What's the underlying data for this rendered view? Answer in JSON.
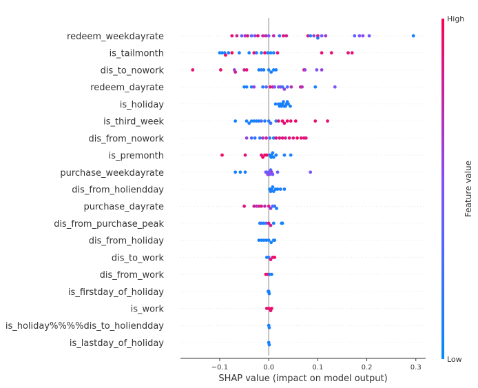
{
  "chart_data": {
    "type": "scatter",
    "title": "",
    "xlabel": "SHAP value (impact on model output)",
    "ylabel": "",
    "xlim": [
      -0.18,
      0.32
    ],
    "xticks": [
      -0.1,
      0.0,
      0.1,
      0.2,
      0.3
    ],
    "xtick_labels": [
      "−0.1",
      "0.0",
      "0.1",
      "0.2",
      "0.3"
    ],
    "grid": false,
    "features": [
      "redeem_weekdayrate",
      "is_tailmonth",
      "dis_to_nowork",
      "redeem_dayrate",
      "is_holiday",
      "is_third_week",
      "dis_from_nowork",
      "is_premonth",
      "purchase_weekdayrate",
      "dis_from_holiendday",
      "purchase_dayrate",
      "dis_from_purchase_peak",
      "dis_from_holiday",
      "dis_to_work",
      "dis_from_work",
      "is_firstday_of_holiday",
      "is_work",
      "is_holiday%%%%dis_to_holiendday",
      "is_lastday_of_holiday"
    ],
    "colorbar": {
      "high_label": "High",
      "low_label": "Low",
      "title": "Feature value",
      "high_color": "#ff0052",
      "low_color": "#008bfb"
    },
    "series": [
      {
        "feature": "redeem_weekdayrate",
        "points": [
          [
            -0.075,
            0.9
          ],
          [
            -0.065,
            0.8
          ],
          [
            -0.055,
            0.4
          ],
          [
            -0.048,
            0.7
          ],
          [
            -0.043,
            0.85
          ],
          [
            -0.035,
            0.3
          ],
          [
            -0.028,
            0.6
          ],
          [
            -0.022,
            0.9
          ],
          [
            -0.012,
            0.75
          ],
          [
            -0.006,
            0.8
          ],
          [
            0.0,
            0.5
          ],
          [
            0.01,
            0.75
          ],
          [
            0.022,
            0.2
          ],
          [
            0.03,
            0.9
          ],
          [
            0.036,
            0.8
          ],
          [
            0.08,
            0.88
          ],
          [
            0.085,
            0.1
          ],
          [
            0.092,
            0.6
          ],
          [
            0.1,
            0.85
          ],
          [
            0.1,
            0.15
          ],
          [
            0.108,
            0.45
          ],
          [
            0.116,
            0.65
          ],
          [
            0.175,
            0.4
          ],
          [
            0.185,
            0.5
          ],
          [
            0.192,
            0.55
          ],
          [
            0.205,
            0.45
          ],
          [
            0.295,
            0.1
          ]
        ]
      },
      {
        "feature": "is_tailmonth",
        "points": [
          [
            -0.1,
            0.1
          ],
          [
            -0.095,
            0.1
          ],
          [
            -0.09,
            0.1
          ],
          [
            -0.088,
            0.95
          ],
          [
            -0.082,
            0.1
          ],
          [
            -0.075,
            0.95
          ],
          [
            -0.06,
            0.1
          ],
          [
            -0.04,
            0.1
          ],
          [
            -0.03,
            0.95
          ],
          [
            -0.025,
            0.1
          ],
          [
            -0.015,
            0.1
          ],
          [
            -0.008,
            0.95
          ],
          [
            -0.002,
            0.1
          ],
          [
            0.004,
            0.1
          ],
          [
            0.01,
            0.1
          ],
          [
            0.018,
            0.9
          ],
          [
            0.108,
            0.9
          ],
          [
            0.128,
            0.9
          ],
          [
            0.162,
            0.9
          ],
          [
            0.17,
            0.9
          ]
        ]
      },
      {
        "feature": "dis_to_nowork",
        "points": [
          [
            -0.155,
            0.9
          ],
          [
            -0.098,
            0.9
          ],
          [
            -0.07,
            0.6
          ],
          [
            -0.068,
            0.8
          ],
          [
            -0.05,
            0.8
          ],
          [
            -0.045,
            0.9
          ],
          [
            -0.02,
            0.1
          ],
          [
            -0.015,
            0.2
          ],
          [
            -0.01,
            0.1
          ],
          [
            0.0,
            0.1
          ],
          [
            0.005,
            0.1
          ],
          [
            0.01,
            0.1
          ],
          [
            0.015,
            0.1
          ],
          [
            0.072,
            0.9
          ],
          [
            0.074,
            0.6
          ],
          [
            0.098,
            0.5
          ],
          [
            0.108,
            0.6
          ]
        ]
      },
      {
        "feature": "redeem_dayrate",
        "points": [
          [
            -0.05,
            0.1
          ],
          [
            -0.045,
            0.1
          ],
          [
            -0.035,
            0.1
          ],
          [
            -0.03,
            0.6
          ],
          [
            -0.012,
            0.2
          ],
          [
            -0.005,
            0.3
          ],
          [
            0.003,
            0.9
          ],
          [
            0.008,
            0.8
          ],
          [
            0.012,
            0.5
          ],
          [
            0.02,
            0.4
          ],
          [
            0.024,
            0.6
          ],
          [
            0.028,
            0.2
          ],
          [
            0.032,
            0.6
          ],
          [
            0.038,
            0.3
          ],
          [
            0.046,
            0.7
          ],
          [
            0.065,
            0.8
          ],
          [
            0.068,
            0.7
          ],
          [
            0.095,
            0.1
          ],
          [
            0.135,
            0.5
          ]
        ]
      },
      {
        "feature": "is_holiday",
        "points": [
          [
            0.014,
            0.1
          ],
          [
            0.02,
            0.1
          ],
          [
            0.024,
            0.1
          ],
          [
            0.028,
            0.1
          ],
          [
            0.032,
            0.1
          ],
          [
            0.036,
            0.1
          ],
          [
            0.04,
            0.1
          ],
          [
            0.044,
            0.1
          ],
          [
            0.026,
            0.1
          ],
          [
            0.034,
            0.1
          ],
          [
            0.03,
            0.1
          ],
          [
            0.022,
            0.1
          ],
          [
            0.038,
            0.1
          ]
        ]
      },
      {
        "feature": "is_third_week",
        "points": [
          [
            -0.068,
            0.1
          ],
          [
            -0.045,
            0.1
          ],
          [
            -0.04,
            0.1
          ],
          [
            -0.035,
            0.1
          ],
          [
            -0.03,
            0.1
          ],
          [
            -0.025,
            0.1
          ],
          [
            -0.02,
            0.1
          ],
          [
            -0.015,
            0.3
          ],
          [
            -0.008,
            0.1
          ],
          [
            0.0,
            0.2
          ],
          [
            0.004,
            0.2
          ],
          [
            0.015,
            0.1
          ],
          [
            0.02,
            0.9
          ],
          [
            0.028,
            0.95
          ],
          [
            0.032,
            0.9
          ],
          [
            0.038,
            0.95
          ],
          [
            0.045,
            0.9
          ],
          [
            0.055,
            0.95
          ],
          [
            0.095,
            0.9
          ],
          [
            0.12,
            0.9
          ]
        ]
      },
      {
        "feature": "dis_from_nowork",
        "points": [
          [
            -0.045,
            0.6
          ],
          [
            -0.035,
            0.3
          ],
          [
            -0.028,
            0.2
          ],
          [
            -0.018,
            0.15
          ],
          [
            -0.012,
            0.7
          ],
          [
            -0.005,
            0.8
          ],
          [
            0.002,
            0.2
          ],
          [
            0.01,
            0.1
          ],
          [
            0.015,
            0.9
          ],
          [
            0.022,
            0.85
          ],
          [
            0.028,
            0.9
          ],
          [
            0.034,
            0.8
          ],
          [
            0.042,
            0.9
          ],
          [
            0.05,
            0.85
          ],
          [
            0.058,
            0.95
          ],
          [
            0.066,
            0.9
          ],
          [
            0.072,
            0.9
          ],
          [
            0.076,
            0.85
          ]
        ]
      },
      {
        "feature": "is_premonth",
        "points": [
          [
            -0.095,
            0.95
          ],
          [
            -0.048,
            0.9
          ],
          [
            -0.015,
            0.9
          ],
          [
            -0.012,
            0.95
          ],
          [
            -0.008,
            0.9
          ],
          [
            -0.004,
            0.95
          ],
          [
            0.002,
            0.1
          ],
          [
            0.006,
            0.1
          ],
          [
            0.01,
            0.1
          ],
          [
            0.005,
            0.05
          ],
          [
            0.008,
            0.1
          ],
          [
            0.015,
            0.1
          ],
          [
            0.032,
            0.1
          ],
          [
            0.045,
            0.1
          ]
        ]
      },
      {
        "feature": "purchase_weekdayrate",
        "points": [
          [
            -0.068,
            0.1
          ],
          [
            -0.058,
            0.1
          ],
          [
            -0.048,
            0.1
          ],
          [
            -0.006,
            0.4
          ],
          [
            -0.004,
            0.5
          ],
          [
            -0.002,
            0.6
          ],
          [
            0.0,
            0.4
          ],
          [
            0.002,
            0.5
          ],
          [
            0.004,
            0.35
          ],
          [
            0.006,
            0.6
          ],
          [
            0.008,
            0.45
          ],
          [
            0.018,
            0.4
          ],
          [
            0.085,
            0.5
          ]
        ]
      },
      {
        "feature": "dis_from_holiendday",
        "points": [
          [
            0.002,
            0.1
          ],
          [
            0.006,
            0.1
          ],
          [
            0.01,
            0.1
          ],
          [
            0.014,
            0.1
          ],
          [
            0.018,
            0.1
          ],
          [
            0.024,
            0.1
          ],
          [
            0.032,
            0.1
          ],
          [
            0.004,
            0.1
          ],
          [
            0.008,
            0.1
          ]
        ]
      },
      {
        "feature": "purchase_dayrate",
        "points": [
          [
            -0.05,
            0.9
          ],
          [
            -0.03,
            0.8
          ],
          [
            -0.025,
            0.7
          ],
          [
            -0.02,
            0.8
          ],
          [
            -0.015,
            0.9
          ],
          [
            -0.008,
            0.7
          ],
          [
            0.0,
            0.85
          ],
          [
            0.004,
            0.6
          ],
          [
            0.008,
            0.3
          ],
          [
            0.012,
            0.2
          ],
          [
            0.016,
            0.1
          ]
        ]
      },
      {
        "feature": "dis_from_purchase_peak",
        "points": [
          [
            -0.018,
            0.1
          ],
          [
            -0.015,
            0.2
          ],
          [
            -0.01,
            0.1
          ],
          [
            -0.005,
            0.3
          ],
          [
            0.0,
            0.9
          ],
          [
            0.004,
            0.8
          ],
          [
            0.01,
            0.1
          ],
          [
            0.026,
            0.1
          ],
          [
            0.028,
            0.1
          ]
        ]
      },
      {
        "feature": "dis_from_holiday",
        "points": [
          [
            -0.02,
            0.1
          ],
          [
            -0.015,
            0.1
          ],
          [
            -0.01,
            0.1
          ],
          [
            -0.005,
            0.1
          ],
          [
            0.0,
            0.1
          ],
          [
            0.005,
            0.1
          ],
          [
            0.01,
            0.1
          ],
          [
            0.012,
            0.1
          ]
        ]
      },
      {
        "feature": "dis_to_work",
        "points": [
          [
            -0.004,
            0.1
          ],
          [
            0.0,
            0.2
          ],
          [
            0.004,
            0.9
          ],
          [
            0.008,
            0.9
          ],
          [
            0.012,
            0.95
          ]
        ]
      },
      {
        "feature": "dis_from_work",
        "points": [
          [
            -0.006,
            0.9
          ],
          [
            -0.002,
            0.9
          ],
          [
            0.002,
            0.1
          ],
          [
            0.006,
            0.1
          ]
        ]
      },
      {
        "feature": "is_firstday_of_holiday",
        "points": [
          [
            -0.001,
            0.1
          ],
          [
            0.0,
            0.1
          ],
          [
            0.001,
            0.1
          ]
        ]
      },
      {
        "feature": "is_work",
        "points": [
          [
            -0.004,
            0.9
          ],
          [
            0.0,
            0.9
          ],
          [
            0.004,
            0.9
          ],
          [
            0.006,
            0.95
          ]
        ]
      },
      {
        "feature": "is_holiday%%%%dis_to_holiendday",
        "points": [
          [
            0.0,
            0.1
          ],
          [
            0.001,
            0.1
          ]
        ]
      },
      {
        "feature": "is_lastday_of_holiday",
        "points": [
          [
            0.0,
            0.1
          ],
          [
            0.001,
            0.1
          ]
        ]
      }
    ]
  }
}
